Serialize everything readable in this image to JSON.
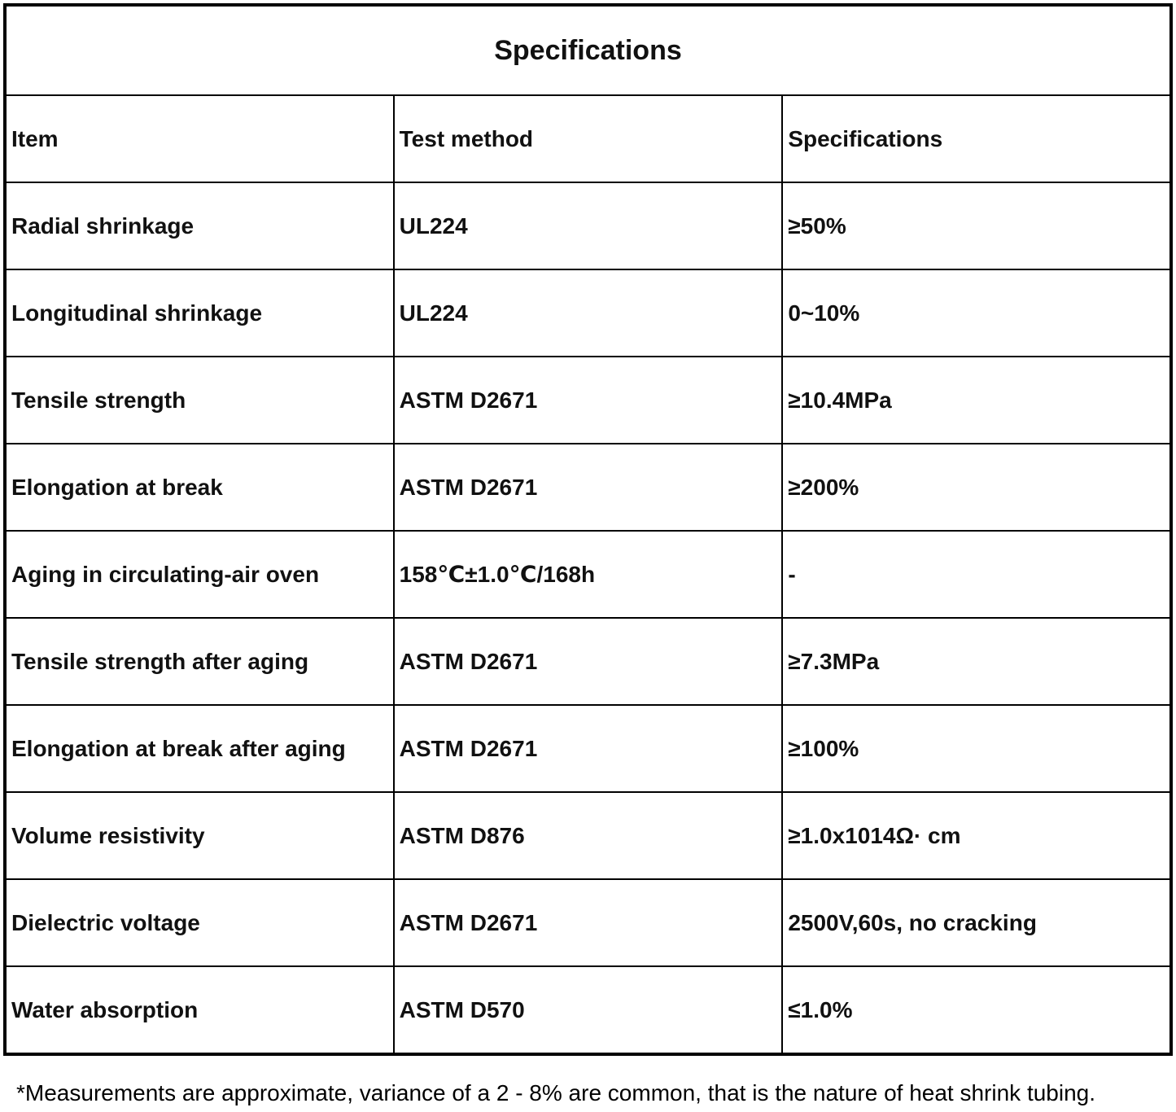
{
  "header": {
    "title": "Specifications"
  },
  "table": {
    "columns": [
      "Item",
      "Test method",
      "Specifications"
    ],
    "rows": [
      [
        "Radial shrinkage",
        "UL224",
        "≥50%"
      ],
      [
        "Longitudinal shrinkage",
        "UL224",
        "0~10%"
      ],
      [
        "Tensile strength",
        "ASTM D2671",
        "≥10.4MPa"
      ],
      [
        "Elongation at break",
        "ASTM D2671",
        "≥200%"
      ],
      [
        "Aging in circulating-air oven",
        "158℃±1.0℃/168h",
        "-"
      ],
      [
        "Tensile strength after aging",
        "ASTM D2671",
        "≥7.3MPa"
      ],
      [
        "Elongation at break after aging",
        "ASTM D2671",
        "≥100%"
      ],
      [
        "Volume resistivity",
        "ASTM D876",
        "≥1.0x1014Ω· cm"
      ],
      [
        "Dielectric voltage",
        "ASTM D2671",
        "2500V,60s, no cracking"
      ],
      [
        "Water absorption",
        "ASTM D570",
        "≤1.0%"
      ]
    ]
  },
  "footnote": "*Measurements are approximate, variance of a 2 - 8% are common, that is the nature of heat shrink tubing."
}
